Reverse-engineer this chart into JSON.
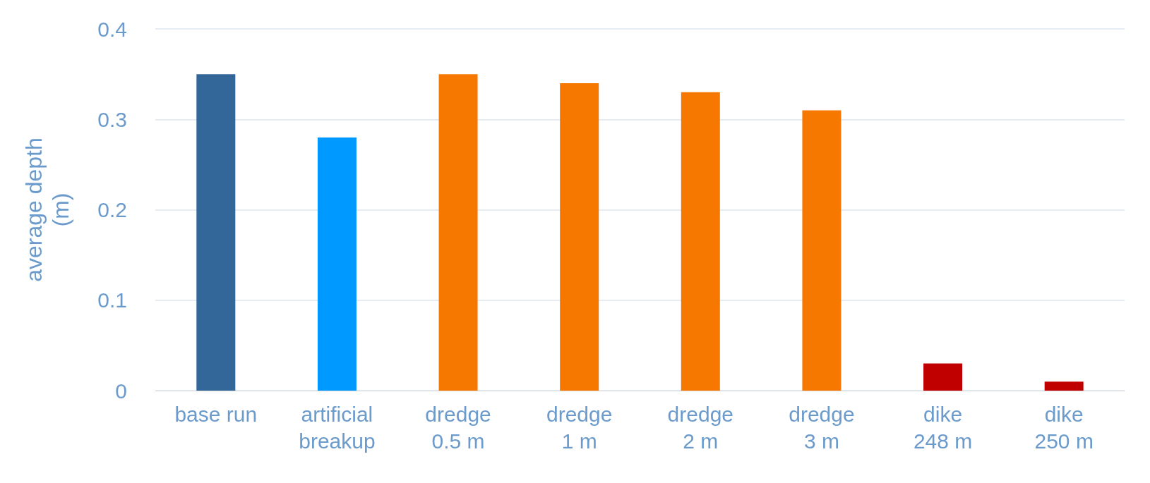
{
  "chart_data": {
    "type": "bar",
    "ylabel": "average depth\n(m)",
    "categories": [
      "base run",
      "artificial\nbreakup",
      "dredge\n0.5 m",
      "dredge\n1 m",
      "dredge\n2 m",
      "dredge\n3 m",
      "dike\n248 m",
      "dike\n250 m"
    ],
    "values": [
      0.35,
      0.28,
      0.35,
      0.34,
      0.33,
      0.31,
      0.03,
      0.01
    ],
    "colors": [
      "#336699",
      "#0099ff",
      "#f77800",
      "#f77800",
      "#f77800",
      "#f77800",
      "#c00000",
      "#c00000"
    ],
    "ylim": [
      0,
      0.4
    ],
    "yticks": [
      0,
      0.1,
      0.2,
      0.3,
      0.4
    ],
    "grid": "y"
  }
}
